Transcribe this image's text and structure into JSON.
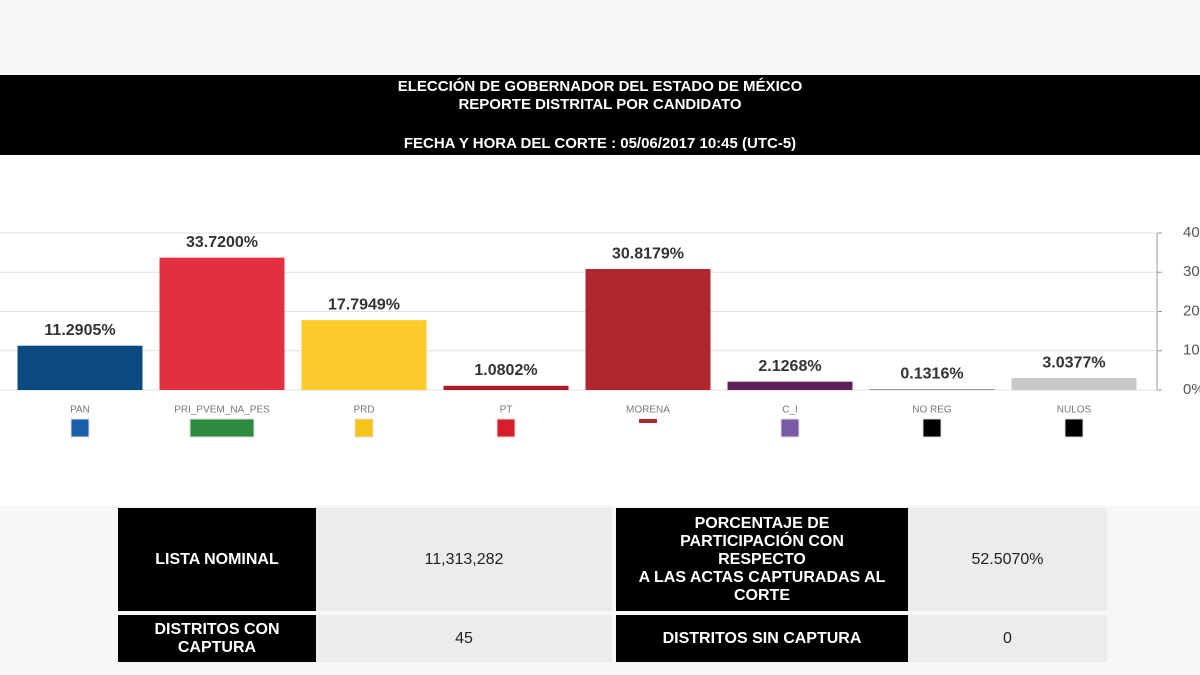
{
  "header": {
    "title": "ELECCIÓN DE GOBERNADOR DEL ESTADO DE MÉXICO",
    "subtitle": "REPORTE DISTRITAL POR CANDIDATO",
    "cutoff": "FECHA Y HORA DEL CORTE : 05/06/2017 10:45 (UTC-5)"
  },
  "chart_data": {
    "type": "bar",
    "categories": [
      "PAN",
      "PRI_PVEM_NA_PES",
      "PRD",
      "PT",
      "MORENA",
      "C_I",
      "NO REG",
      "NULOS"
    ],
    "values": [
      11.2905,
      33.72,
      17.7949,
      1.0802,
      30.8179,
      2.1268,
      0.1316,
      3.0377
    ],
    "value_labels": [
      "11.2905%",
      "33.7200%",
      "17.7949%",
      "1.0802%",
      "30.8179%",
      "2.1268%",
      "0.1316%",
      "3.0377%"
    ],
    "colors": [
      "#0b4a80",
      "#e3303f",
      "#fccc2c",
      "#b5172a",
      "#b0262e",
      "#5f1e5c",
      "#3a3a3a",
      "#c8c8c8"
    ],
    "ylim": [
      0,
      40
    ],
    "yticks": [
      {
        "value": 0,
        "label": "0%"
      },
      10,
      20,
      30,
      40
    ],
    "grid": true
  },
  "table": {
    "rows": [
      [
        "LISTA NOMINAL",
        "11,313,282",
        "PORCENTAJE DE\nPARTICIPACIÓN CON\nRESPECTO\nA LAS ACTAS CAPTURADAS AL\nCORTE",
        "52.5070%"
      ],
      [
        "DISTRITOS CON\nCAPTURA",
        "45",
        "DISTRITOS SIN CAPTURA",
        "0"
      ]
    ]
  }
}
